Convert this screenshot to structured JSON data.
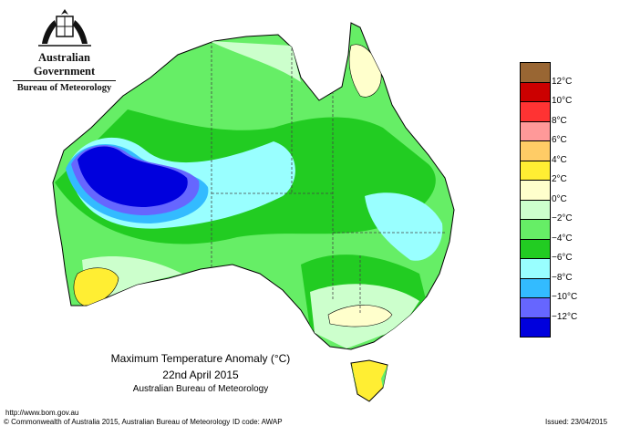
{
  "header": {
    "government": "Australian Government",
    "bureau": "Bureau of Meteorology"
  },
  "map": {
    "title": "Maximum Temperature Anomaly (°C)",
    "date": "22nd April 2015",
    "agency": "Australian Bureau of Meteorology",
    "region": "Australia"
  },
  "legend": [
    {
      "color": "#996633",
      "label": "12°C"
    },
    {
      "color": "#cc0000",
      "label": "10°C"
    },
    {
      "color": "#ff3333",
      "label": "8°C"
    },
    {
      "color": "#ff9999",
      "label": "6°C"
    },
    {
      "color": "#ffcc66",
      "label": "4°C"
    },
    {
      "color": "#ffee33",
      "label": "2°C"
    },
    {
      "color": "#ffffcc",
      "label": "0°C"
    },
    {
      "color": "#ccffcc",
      "label": "−2°C"
    },
    {
      "color": "#66ee66",
      "label": "−4°C"
    },
    {
      "color": "#22cc22",
      "label": "−6°C"
    },
    {
      "color": "#99ffff",
      "label": "−8°C"
    },
    {
      "color": "#33bbff",
      "label": "−10°C"
    },
    {
      "color": "#6666ff",
      "label": "−12°C"
    },
    {
      "color": "#0000dd",
      "label": ""
    }
  ],
  "footer": {
    "url": "http://www.bom.gov.au",
    "copyright": "© Commonwealth of Australia 2015, Australian Bureau of Meteorology",
    "id_code": "ID code: AWAP",
    "issued": "Issued: 23/04/2015"
  }
}
